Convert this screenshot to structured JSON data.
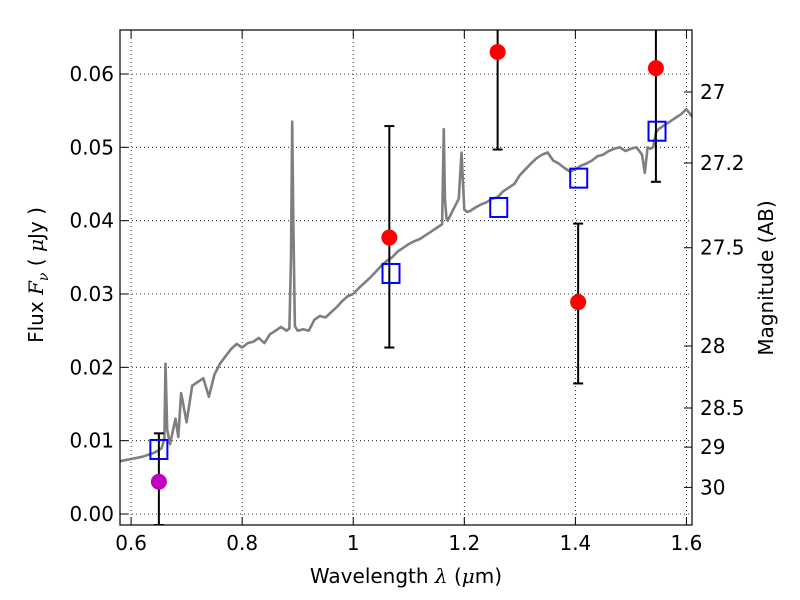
{
  "chart_data": {
    "type": "scatter",
    "xlabel": "Wavelength  λ (μm)",
    "ylabel": "Flux  Fν  ( μJy )",
    "y2label": "Magnitude (AB)",
    "xlim": [
      0.58,
      1.61
    ],
    "ylim": [
      -0.0015,
      0.066
    ],
    "grid": true,
    "x_ticks": [
      {
        "value": 0.6,
        "label": "0.6"
      },
      {
        "value": 0.8,
        "label": "0.8"
      },
      {
        "value": 1.0,
        "label": "1"
      },
      {
        "value": 1.2,
        "label": "1.2"
      },
      {
        "value": 1.4,
        "label": "1.4"
      },
      {
        "value": 1.6,
        "label": "1.6"
      }
    ],
    "y_ticks": [
      {
        "value": 0.0,
        "label": "0.00"
      },
      {
        "value": 0.01,
        "label": "0.01"
      },
      {
        "value": 0.02,
        "label": "0.02"
      },
      {
        "value": 0.03,
        "label": "0.03"
      },
      {
        "value": 0.04,
        "label": "0.04"
      },
      {
        "value": 0.05,
        "label": "0.05"
      },
      {
        "value": 0.06,
        "label": "0.06"
      }
    ],
    "y2_ticks": [
      {
        "value": 27.0,
        "label": "27"
      },
      {
        "value": 27.2,
        "label": "27.2"
      },
      {
        "value": 27.5,
        "label": "27.5"
      },
      {
        "value": 28.0,
        "label": "28"
      },
      {
        "value": 28.5,
        "label": "28.5"
      },
      {
        "value": 29.0,
        "label": "29"
      },
      {
        "value": 30.0,
        "label": "30"
      }
    ],
    "series": [
      {
        "type": "line",
        "color": "#7f7f7f",
        "x": [
          0.58,
          0.6,
          0.62,
          0.64,
          0.65,
          0.655,
          0.66,
          0.662,
          0.665,
          0.67,
          0.68,
          0.685,
          0.69,
          0.7,
          0.705,
          0.71,
          0.72,
          0.73,
          0.74,
          0.75,
          0.76,
          0.77,
          0.775,
          0.78,
          0.79,
          0.8,
          0.81,
          0.82,
          0.83,
          0.84,
          0.85,
          0.86,
          0.87,
          0.88,
          0.885,
          0.888,
          0.89,
          0.892,
          0.895,
          0.9,
          0.91,
          0.92,
          0.93,
          0.94,
          0.95,
          0.96,
          0.97,
          0.98,
          0.99,
          1.0,
          1.01,
          1.02,
          1.03,
          1.04,
          1.05,
          1.06,
          1.07,
          1.08,
          1.09,
          1.1,
          1.11,
          1.12,
          1.13,
          1.14,
          1.15,
          1.16,
          1.163,
          1.165,
          1.168,
          1.17,
          1.18,
          1.19,
          1.195,
          1.2,
          1.205,
          1.21,
          1.22,
          1.23,
          1.24,
          1.25,
          1.26,
          1.27,
          1.28,
          1.29,
          1.3,
          1.31,
          1.32,
          1.33,
          1.34,
          1.35,
          1.36,
          1.37,
          1.38,
          1.39,
          1.4,
          1.41,
          1.42,
          1.43,
          1.44,
          1.45,
          1.46,
          1.47,
          1.48,
          1.49,
          1.5,
          1.51,
          1.52,
          1.525,
          1.53,
          1.535,
          1.54,
          1.545,
          1.55,
          1.56,
          1.57,
          1.58,
          1.59,
          1.6,
          1.61
        ],
        "y": [
          0.0072,
          0.0075,
          0.0078,
          0.0083,
          0.0087,
          0.009,
          0.0103,
          0.0205,
          0.0115,
          0.0095,
          0.013,
          0.0105,
          0.0165,
          0.0125,
          0.015,
          0.0175,
          0.018,
          0.0185,
          0.016,
          0.019,
          0.0205,
          0.0215,
          0.022,
          0.0225,
          0.0232,
          0.0227,
          0.0233,
          0.0235,
          0.024,
          0.0233,
          0.0245,
          0.025,
          0.0255,
          0.025,
          0.0253,
          0.035,
          0.0535,
          0.04,
          0.0256,
          0.025,
          0.0252,
          0.025,
          0.0265,
          0.027,
          0.0268,
          0.0275,
          0.0282,
          0.029,
          0.0297,
          0.03,
          0.0308,
          0.0315,
          0.0322,
          0.033,
          0.0338,
          0.0345,
          0.035,
          0.0358,
          0.0363,
          0.0368,
          0.0372,
          0.0375,
          0.038,
          0.0385,
          0.039,
          0.0395,
          0.0525,
          0.043,
          0.0403,
          0.04,
          0.0415,
          0.043,
          0.0493,
          0.0415,
          0.0412,
          0.0413,
          0.0418,
          0.0422,
          0.0425,
          0.043,
          0.0432,
          0.044,
          0.0445,
          0.045,
          0.0462,
          0.047,
          0.0478,
          0.0485,
          0.049,
          0.0493,
          0.0482,
          0.0478,
          0.0472,
          0.0467,
          0.047,
          0.0475,
          0.0478,
          0.0482,
          0.0488,
          0.049,
          0.0495,
          0.0498,
          0.05,
          0.0495,
          0.0498,
          0.05,
          0.049,
          0.0465,
          0.05,
          0.0498,
          0.05,
          0.052,
          0.0525,
          0.053,
          0.0535,
          0.054,
          0.0545,
          0.0552,
          0.0542
        ]
      },
      {
        "type": "errorbar",
        "color": "#ff0000",
        "marker": "circle",
        "x": [
          1.065,
          1.26,
          1.405,
          1.545
        ],
        "y": [
          0.0377,
          0.063,
          0.0289,
          0.0608
        ],
        "yerr_low": [
          0.0227,
          0.0497,
          0.0178,
          0.0453
        ],
        "yerr_high": [
          0.0529,
          0.0669,
          0.0396,
          0.0669
        ]
      },
      {
        "type": "errorbar",
        "color": "#bf00bf",
        "marker": "circle",
        "x": [
          0.65
        ],
        "y": [
          0.0044
        ],
        "yerr_low": [
          -0.0015
        ],
        "yerr_high": [
          0.011
        ]
      },
      {
        "type": "scatter",
        "color": "#0000ff",
        "marker": "square-open",
        "x": [
          0.65,
          1.068,
          1.262,
          1.406,
          1.547
        ],
        "y": [
          0.0088,
          0.0328,
          0.0418,
          0.0458,
          0.0522
        ]
      }
    ]
  }
}
